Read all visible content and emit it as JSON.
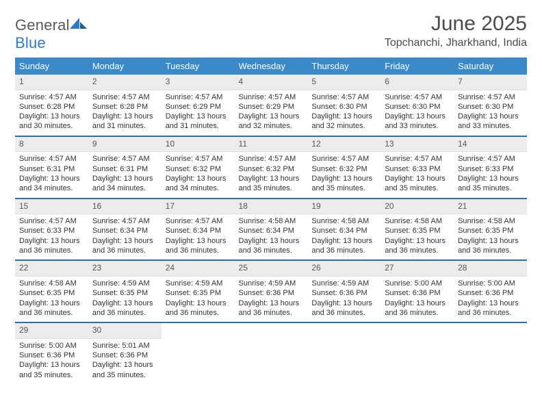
{
  "header": {
    "logo_word1": "General",
    "logo_word2": "Blue",
    "month_title": "June 2025",
    "location": "Topchanchi, Jharkhand, India"
  },
  "style": {
    "header_bg": "#3a89c9",
    "daynum_bg": "#ececec",
    "divider": "#2f6fa8",
    "text": "#333333"
  },
  "daynames": [
    "Sunday",
    "Monday",
    "Tuesday",
    "Wednesday",
    "Thursday",
    "Friday",
    "Saturday"
  ],
  "weeks": [
    [
      {
        "n": "1",
        "sr": "Sunrise: 4:57 AM",
        "ss": "Sunset: 6:28 PM",
        "d1": "Daylight: 13 hours",
        "d2": "and 30 minutes."
      },
      {
        "n": "2",
        "sr": "Sunrise: 4:57 AM",
        "ss": "Sunset: 6:28 PM",
        "d1": "Daylight: 13 hours",
        "d2": "and 31 minutes."
      },
      {
        "n": "3",
        "sr": "Sunrise: 4:57 AM",
        "ss": "Sunset: 6:29 PM",
        "d1": "Daylight: 13 hours",
        "d2": "and 31 minutes."
      },
      {
        "n": "4",
        "sr": "Sunrise: 4:57 AM",
        "ss": "Sunset: 6:29 PM",
        "d1": "Daylight: 13 hours",
        "d2": "and 32 minutes."
      },
      {
        "n": "5",
        "sr": "Sunrise: 4:57 AM",
        "ss": "Sunset: 6:30 PM",
        "d1": "Daylight: 13 hours",
        "d2": "and 32 minutes."
      },
      {
        "n": "6",
        "sr": "Sunrise: 4:57 AM",
        "ss": "Sunset: 6:30 PM",
        "d1": "Daylight: 13 hours",
        "d2": "and 33 minutes."
      },
      {
        "n": "7",
        "sr": "Sunrise: 4:57 AM",
        "ss": "Sunset: 6:30 PM",
        "d1": "Daylight: 13 hours",
        "d2": "and 33 minutes."
      }
    ],
    [
      {
        "n": "8",
        "sr": "Sunrise: 4:57 AM",
        "ss": "Sunset: 6:31 PM",
        "d1": "Daylight: 13 hours",
        "d2": "and 34 minutes."
      },
      {
        "n": "9",
        "sr": "Sunrise: 4:57 AM",
        "ss": "Sunset: 6:31 PM",
        "d1": "Daylight: 13 hours",
        "d2": "and 34 minutes."
      },
      {
        "n": "10",
        "sr": "Sunrise: 4:57 AM",
        "ss": "Sunset: 6:32 PM",
        "d1": "Daylight: 13 hours",
        "d2": "and 34 minutes."
      },
      {
        "n": "11",
        "sr": "Sunrise: 4:57 AM",
        "ss": "Sunset: 6:32 PM",
        "d1": "Daylight: 13 hours",
        "d2": "and 35 minutes."
      },
      {
        "n": "12",
        "sr": "Sunrise: 4:57 AM",
        "ss": "Sunset: 6:32 PM",
        "d1": "Daylight: 13 hours",
        "d2": "and 35 minutes."
      },
      {
        "n": "13",
        "sr": "Sunrise: 4:57 AM",
        "ss": "Sunset: 6:33 PM",
        "d1": "Daylight: 13 hours",
        "d2": "and 35 minutes."
      },
      {
        "n": "14",
        "sr": "Sunrise: 4:57 AM",
        "ss": "Sunset: 6:33 PM",
        "d1": "Daylight: 13 hours",
        "d2": "and 35 minutes."
      }
    ],
    [
      {
        "n": "15",
        "sr": "Sunrise: 4:57 AM",
        "ss": "Sunset: 6:33 PM",
        "d1": "Daylight: 13 hours",
        "d2": "and 36 minutes."
      },
      {
        "n": "16",
        "sr": "Sunrise: 4:57 AM",
        "ss": "Sunset: 6:34 PM",
        "d1": "Daylight: 13 hours",
        "d2": "and 36 minutes."
      },
      {
        "n": "17",
        "sr": "Sunrise: 4:57 AM",
        "ss": "Sunset: 6:34 PM",
        "d1": "Daylight: 13 hours",
        "d2": "and 36 minutes."
      },
      {
        "n": "18",
        "sr": "Sunrise: 4:58 AM",
        "ss": "Sunset: 6:34 PM",
        "d1": "Daylight: 13 hours",
        "d2": "and 36 minutes."
      },
      {
        "n": "19",
        "sr": "Sunrise: 4:58 AM",
        "ss": "Sunset: 6:34 PM",
        "d1": "Daylight: 13 hours",
        "d2": "and 36 minutes."
      },
      {
        "n": "20",
        "sr": "Sunrise: 4:58 AM",
        "ss": "Sunset: 6:35 PM",
        "d1": "Daylight: 13 hours",
        "d2": "and 36 minutes."
      },
      {
        "n": "21",
        "sr": "Sunrise: 4:58 AM",
        "ss": "Sunset: 6:35 PM",
        "d1": "Daylight: 13 hours",
        "d2": "and 36 minutes."
      }
    ],
    [
      {
        "n": "22",
        "sr": "Sunrise: 4:58 AM",
        "ss": "Sunset: 6:35 PM",
        "d1": "Daylight: 13 hours",
        "d2": "and 36 minutes."
      },
      {
        "n": "23",
        "sr": "Sunrise: 4:59 AM",
        "ss": "Sunset: 6:35 PM",
        "d1": "Daylight: 13 hours",
        "d2": "and 36 minutes."
      },
      {
        "n": "24",
        "sr": "Sunrise: 4:59 AM",
        "ss": "Sunset: 6:35 PM",
        "d1": "Daylight: 13 hours",
        "d2": "and 36 minutes."
      },
      {
        "n": "25",
        "sr": "Sunrise: 4:59 AM",
        "ss": "Sunset: 6:36 PM",
        "d1": "Daylight: 13 hours",
        "d2": "and 36 minutes."
      },
      {
        "n": "26",
        "sr": "Sunrise: 4:59 AM",
        "ss": "Sunset: 6:36 PM",
        "d1": "Daylight: 13 hours",
        "d2": "and 36 minutes."
      },
      {
        "n": "27",
        "sr": "Sunrise: 5:00 AM",
        "ss": "Sunset: 6:36 PM",
        "d1": "Daylight: 13 hours",
        "d2": "and 36 minutes."
      },
      {
        "n": "28",
        "sr": "Sunrise: 5:00 AM",
        "ss": "Sunset: 6:36 PM",
        "d1": "Daylight: 13 hours",
        "d2": "and 36 minutes."
      }
    ],
    [
      {
        "n": "29",
        "sr": "Sunrise: 5:00 AM",
        "ss": "Sunset: 6:36 PM",
        "d1": "Daylight: 13 hours",
        "d2": "and 35 minutes."
      },
      {
        "n": "30",
        "sr": "Sunrise: 5:01 AM",
        "ss": "Sunset: 6:36 PM",
        "d1": "Daylight: 13 hours",
        "d2": "and 35 minutes."
      },
      {
        "empty": true
      },
      {
        "empty": true
      },
      {
        "empty": true
      },
      {
        "empty": true
      },
      {
        "empty": true
      }
    ]
  ]
}
